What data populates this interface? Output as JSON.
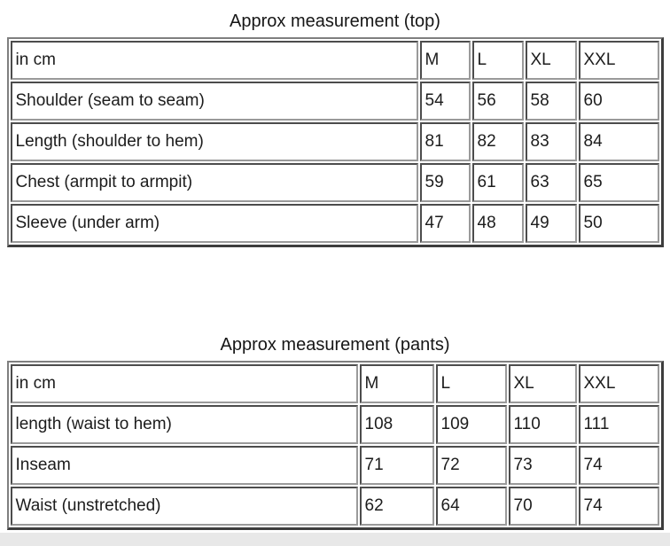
{
  "page": {
    "background_color": "#ffffff",
    "footer_strip_color": "#e8e8e8",
    "border_dark_color": "#3d3d3d",
    "border_gray_color": "#7f7f7f"
  },
  "tables": [
    {
      "title": "Approx measurement (top)",
      "unit_header": "in cm",
      "size_headers": [
        "M",
        "L",
        "XL",
        "XXL"
      ],
      "rows": [
        {
          "label": "Shoulder (seam to seam)",
          "values": [
            "54",
            "56",
            "58",
            "60"
          ]
        },
        {
          "label": "Length (shoulder to hem)",
          "values": [
            "81",
            "82",
            "83",
            "84"
          ]
        },
        {
          "label": "Chest (armpit to armpit)",
          "values": [
            "59",
            "61",
            "63",
            "65"
          ]
        },
        {
          "label": "Sleeve (under arm)",
          "values": [
            "47",
            "48",
            "49",
            "50"
          ]
        }
      ]
    },
    {
      "title": "Approx measurement (pants)",
      "unit_header": "in cm",
      "size_headers": [
        "M",
        "L",
        "XL",
        "XXL"
      ],
      "rows": [
        {
          "label": "length (waist to hem)",
          "values": [
            "108",
            "109",
            "110",
            "111"
          ]
        },
        {
          "label": "Inseam",
          "values": [
            "71",
            "72",
            "73",
            "74"
          ]
        },
        {
          "label": "Waist (unstretched)",
          "values": [
            "62",
            "64",
            "70",
            "74"
          ]
        }
      ]
    }
  ]
}
